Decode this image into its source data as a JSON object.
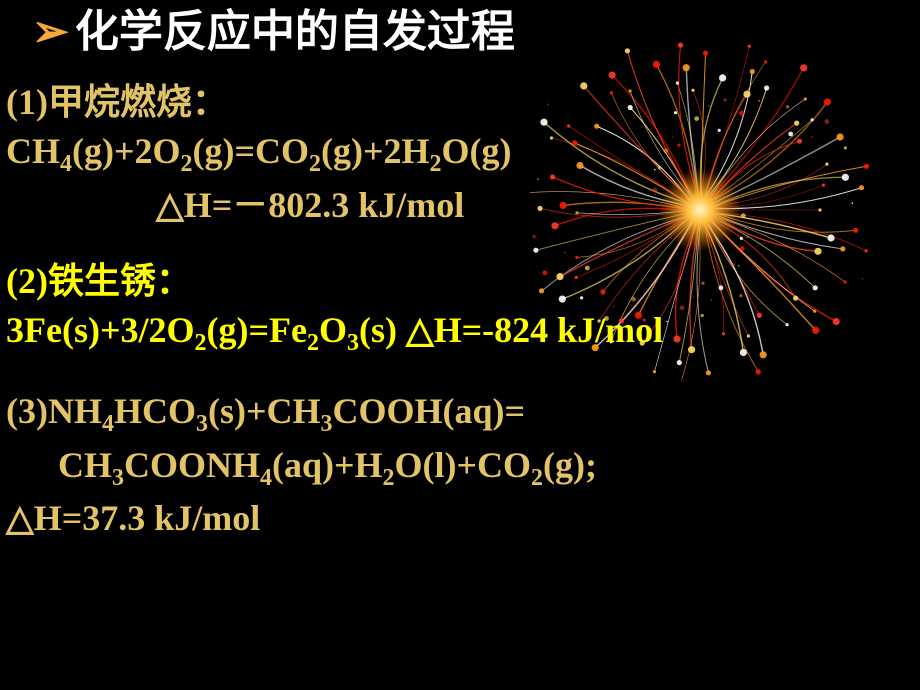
{
  "heading": {
    "arrow_color": "#f2a83c",
    "title": "化学反应中的自发过程",
    "title_color": "#ffffff",
    "fontsize": 44
  },
  "reactions": [
    {
      "label": "(1)甲烷燃烧：",
      "equation_parts": [
        "CH",
        "4",
        "(g)+2O",
        "2",
        "(g)=CO",
        "2",
        "(g)+2H",
        "2",
        "O(g)"
      ],
      "delta_h": "△H=－802.3 kJ/mol",
      "text_color": "#e2c365"
    },
    {
      "label": "(2)铁生锈：",
      "equation_parts": [
        "3Fe(s)+3/2O",
        "2",
        "(g)=Fe",
        "2",
        "O",
        "3",
        "(s)  △H=-824 kJ/mol"
      ],
      "delta_h": "",
      "text_color": "#ffff00"
    },
    {
      "label_parts": [
        "(3)NH",
        "4",
        "HCO",
        "3",
        "(s)+CH",
        "3",
        "COOH(aq)="
      ],
      "equation_parts": [
        "CH",
        "3",
        "COONH",
        "4",
        "(aq)+H",
        "2",
        "O(l)+CO",
        "2",
        "(g);"
      ],
      "delta_h": "△H=37.3 kJ/mol",
      "text_color": "#e2c365"
    }
  ],
  "firework": {
    "center_color": "#ffc040",
    "spark_colors": [
      "#ff3b30",
      "#ff9d20",
      "#ffe060",
      "#ff1a00",
      "#ffffff"
    ],
    "streak_count": 80
  },
  "style": {
    "background_color": "#000000",
    "body_fontsize": 36,
    "sub_fontsize": 24
  }
}
